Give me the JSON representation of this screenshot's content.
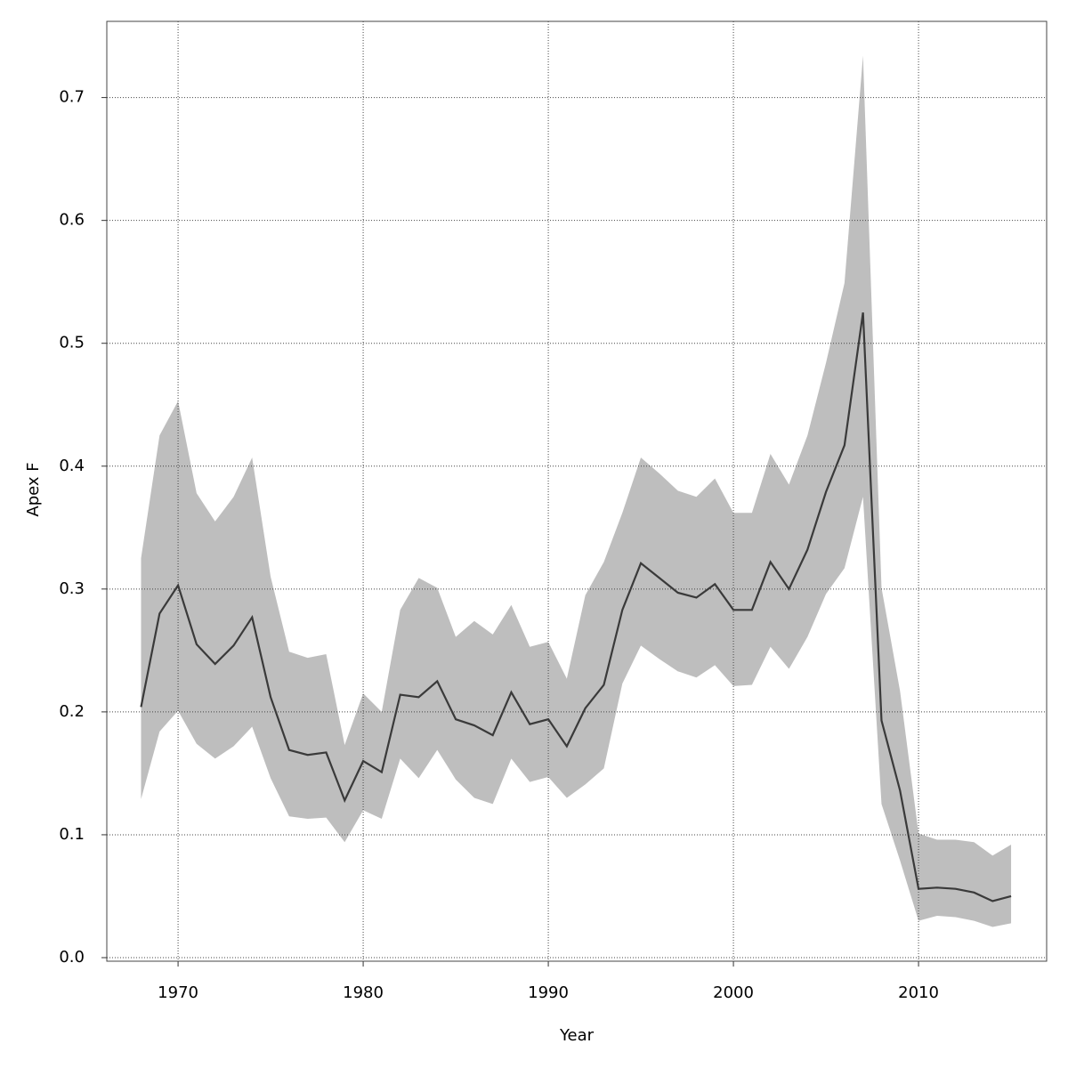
{
  "chart_data": {
    "type": "line",
    "x_label": "Year",
    "y_label": "Apex F",
    "x": [
      1968,
      1969,
      1970,
      1971,
      1972,
      1973,
      1974,
      1975,
      1976,
      1977,
      1978,
      1979,
      1980,
      1981,
      1982,
      1983,
      1984,
      1985,
      1986,
      1987,
      1988,
      1989,
      1990,
      1991,
      1992,
      1993,
      1994,
      1995,
      1996,
      1997,
      1998,
      1999,
      2000,
      2001,
      2002,
      2003,
      2004,
      2005,
      2006,
      2007,
      2008,
      2009,
      2010,
      2011,
      2012,
      2013,
      2014,
      2015
    ],
    "values": [
      0.204,
      0.28,
      0.303,
      0.255,
      0.239,
      0.254,
      0.277,
      0.212,
      0.169,
      0.165,
      0.167,
      0.128,
      0.16,
      0.151,
      0.214,
      0.212,
      0.225,
      0.194,
      0.189,
      0.181,
      0.216,
      0.19,
      0.194,
      0.172,
      0.203,
      0.222,
      0.283,
      0.321,
      0.309,
      0.297,
      0.293,
      0.304,
      0.283,
      0.283,
      0.322,
      0.3,
      0.332,
      0.379,
      0.417,
      0.525,
      0.193,
      0.136,
      0.056,
      0.057,
      0.056,
      0.053,
      0.046,
      0.05
    ],
    "upper": [
      0.325,
      0.425,
      0.453,
      0.378,
      0.355,
      0.375,
      0.407,
      0.31,
      0.249,
      0.244,
      0.247,
      0.173,
      0.215,
      0.2,
      0.283,
      0.309,
      0.301,
      0.261,
      0.274,
      0.263,
      0.287,
      0.253,
      0.257,
      0.227,
      0.295,
      0.322,
      0.362,
      0.407,
      0.394,
      0.38,
      0.375,
      0.39,
      0.362,
      0.362,
      0.41,
      0.385,
      0.425,
      0.484,
      0.549,
      0.734,
      0.301,
      0.217,
      0.101,
      0.096,
      0.096,
      0.094,
      0.083,
      0.092
    ],
    "lower": [
      0.129,
      0.184,
      0.201,
      0.174,
      0.162,
      0.172,
      0.188,
      0.146,
      0.115,
      0.113,
      0.114,
      0.094,
      0.12,
      0.113,
      0.162,
      0.146,
      0.169,
      0.145,
      0.13,
      0.125,
      0.162,
      0.143,
      0.147,
      0.13,
      0.141,
      0.154,
      0.223,
      0.254,
      0.243,
      0.233,
      0.228,
      0.238,
      0.221,
      0.222,
      0.253,
      0.235,
      0.261,
      0.296,
      0.317,
      0.375,
      0.125,
      0.079,
      0.03,
      0.034,
      0.033,
      0.03,
      0.025,
      0.028
    ],
    "color": "#3a3a3a",
    "band_color": "#bebebe",
    "xlim": [
      1966.15,
      2016.92
    ],
    "xticks": [
      1970,
      1980,
      1990,
      2000,
      2010
    ],
    "ylim": [
      -0.0029,
      0.762
    ],
    "yticks": [
      {
        "value": 0,
        "label": "0.0"
      },
      0.1,
      0.2,
      0.3,
      0.4,
      0.5,
      0.6,
      0.7
    ],
    "grid": true
  }
}
